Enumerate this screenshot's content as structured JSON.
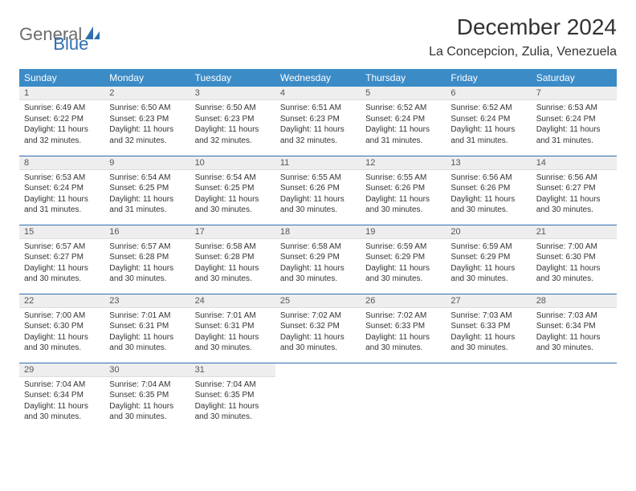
{
  "brand": {
    "part1": "General",
    "part2": "Blue"
  },
  "title": "December 2024",
  "location": "La Concepcion, Zulia, Venezuela",
  "colors": {
    "header_bg": "#3b8bc7",
    "header_text": "#ffffff",
    "border": "#2f6fae",
    "daynum_bg": "#eeeeee",
    "brand_gray": "#6b6b6b",
    "brand_blue": "#2f6fae"
  },
  "weekdays": [
    "Sunday",
    "Monday",
    "Tuesday",
    "Wednesday",
    "Thursday",
    "Friday",
    "Saturday"
  ],
  "labels": {
    "sunrise": "Sunrise:",
    "sunset": "Sunset:",
    "daylight": "Daylight:"
  },
  "weeks": [
    [
      {
        "day": "1",
        "sunrise": "6:49 AM",
        "sunset": "6:22 PM",
        "daylight": "11 hours and 32 minutes."
      },
      {
        "day": "2",
        "sunrise": "6:50 AM",
        "sunset": "6:23 PM",
        "daylight": "11 hours and 32 minutes."
      },
      {
        "day": "3",
        "sunrise": "6:50 AM",
        "sunset": "6:23 PM",
        "daylight": "11 hours and 32 minutes."
      },
      {
        "day": "4",
        "sunrise": "6:51 AM",
        "sunset": "6:23 PM",
        "daylight": "11 hours and 32 minutes."
      },
      {
        "day": "5",
        "sunrise": "6:52 AM",
        "sunset": "6:24 PM",
        "daylight": "11 hours and 31 minutes."
      },
      {
        "day": "6",
        "sunrise": "6:52 AM",
        "sunset": "6:24 PM",
        "daylight": "11 hours and 31 minutes."
      },
      {
        "day": "7",
        "sunrise": "6:53 AM",
        "sunset": "6:24 PM",
        "daylight": "11 hours and 31 minutes."
      }
    ],
    [
      {
        "day": "8",
        "sunrise": "6:53 AM",
        "sunset": "6:24 PM",
        "daylight": "11 hours and 31 minutes."
      },
      {
        "day": "9",
        "sunrise": "6:54 AM",
        "sunset": "6:25 PM",
        "daylight": "11 hours and 31 minutes."
      },
      {
        "day": "10",
        "sunrise": "6:54 AM",
        "sunset": "6:25 PM",
        "daylight": "11 hours and 30 minutes."
      },
      {
        "day": "11",
        "sunrise": "6:55 AM",
        "sunset": "6:26 PM",
        "daylight": "11 hours and 30 minutes."
      },
      {
        "day": "12",
        "sunrise": "6:55 AM",
        "sunset": "6:26 PM",
        "daylight": "11 hours and 30 minutes."
      },
      {
        "day": "13",
        "sunrise": "6:56 AM",
        "sunset": "6:26 PM",
        "daylight": "11 hours and 30 minutes."
      },
      {
        "day": "14",
        "sunrise": "6:56 AM",
        "sunset": "6:27 PM",
        "daylight": "11 hours and 30 minutes."
      }
    ],
    [
      {
        "day": "15",
        "sunrise": "6:57 AM",
        "sunset": "6:27 PM",
        "daylight": "11 hours and 30 minutes."
      },
      {
        "day": "16",
        "sunrise": "6:57 AM",
        "sunset": "6:28 PM",
        "daylight": "11 hours and 30 minutes."
      },
      {
        "day": "17",
        "sunrise": "6:58 AM",
        "sunset": "6:28 PM",
        "daylight": "11 hours and 30 minutes."
      },
      {
        "day": "18",
        "sunrise": "6:58 AM",
        "sunset": "6:29 PM",
        "daylight": "11 hours and 30 minutes."
      },
      {
        "day": "19",
        "sunrise": "6:59 AM",
        "sunset": "6:29 PM",
        "daylight": "11 hours and 30 minutes."
      },
      {
        "day": "20",
        "sunrise": "6:59 AM",
        "sunset": "6:29 PM",
        "daylight": "11 hours and 30 minutes."
      },
      {
        "day": "21",
        "sunrise": "7:00 AM",
        "sunset": "6:30 PM",
        "daylight": "11 hours and 30 minutes."
      }
    ],
    [
      {
        "day": "22",
        "sunrise": "7:00 AM",
        "sunset": "6:30 PM",
        "daylight": "11 hours and 30 minutes."
      },
      {
        "day": "23",
        "sunrise": "7:01 AM",
        "sunset": "6:31 PM",
        "daylight": "11 hours and 30 minutes."
      },
      {
        "day": "24",
        "sunrise": "7:01 AM",
        "sunset": "6:31 PM",
        "daylight": "11 hours and 30 minutes."
      },
      {
        "day": "25",
        "sunrise": "7:02 AM",
        "sunset": "6:32 PM",
        "daylight": "11 hours and 30 minutes."
      },
      {
        "day": "26",
        "sunrise": "7:02 AM",
        "sunset": "6:33 PM",
        "daylight": "11 hours and 30 minutes."
      },
      {
        "day": "27",
        "sunrise": "7:03 AM",
        "sunset": "6:33 PM",
        "daylight": "11 hours and 30 minutes."
      },
      {
        "day": "28",
        "sunrise": "7:03 AM",
        "sunset": "6:34 PM",
        "daylight": "11 hours and 30 minutes."
      }
    ],
    [
      {
        "day": "29",
        "sunrise": "7:04 AM",
        "sunset": "6:34 PM",
        "daylight": "11 hours and 30 minutes."
      },
      {
        "day": "30",
        "sunrise": "7:04 AM",
        "sunset": "6:35 PM",
        "daylight": "11 hours and 30 minutes."
      },
      {
        "day": "31",
        "sunrise": "7:04 AM",
        "sunset": "6:35 PM",
        "daylight": "11 hours and 30 minutes."
      },
      null,
      null,
      null,
      null
    ]
  ]
}
